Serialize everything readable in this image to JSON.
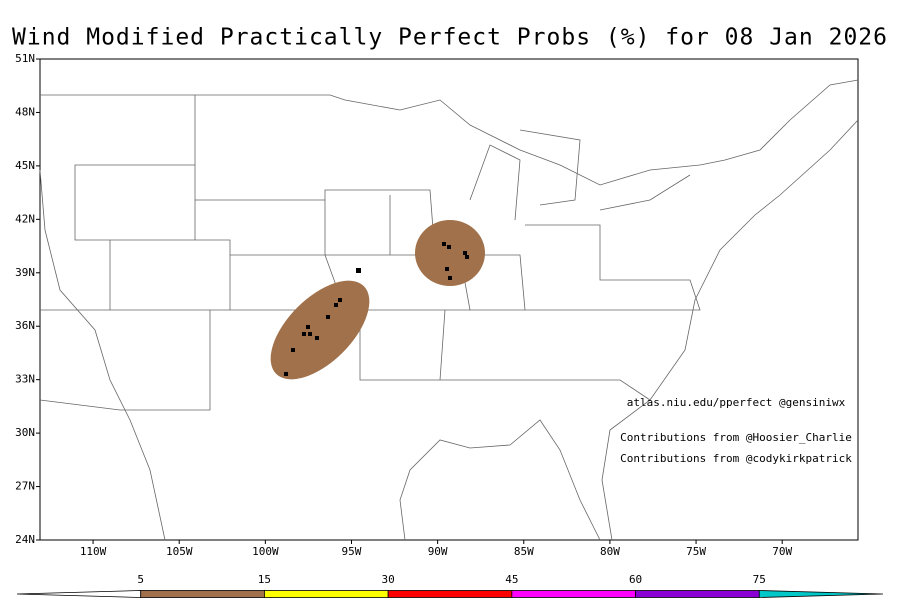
{
  "title": "Wind Modified Practically Perfect Probs (%) for 08 Jan 2026",
  "map": {
    "lat_range": [
      24,
      51
    ],
    "lon_range": [
      -113.08,
      -65.6
    ],
    "lat_ticks": [
      {
        "value": 51,
        "label": "51N"
      },
      {
        "value": 48,
        "label": "48N"
      },
      {
        "value": 45,
        "label": "45N"
      },
      {
        "value": 42,
        "label": "42N"
      },
      {
        "value": 39,
        "label": "39N"
      },
      {
        "value": 36,
        "label": "36N"
      },
      {
        "value": 33,
        "label": "33N"
      },
      {
        "value": 30,
        "label": "30N"
      },
      {
        "value": 27,
        "label": "27N"
      },
      {
        "value": 24,
        "label": "24N"
      }
    ],
    "lon_ticks": [
      {
        "value": -110,
        "label": "110W"
      },
      {
        "value": -105,
        "label": "105W"
      },
      {
        "value": -100,
        "label": "100W"
      },
      {
        "value": -95,
        "label": "95W"
      },
      {
        "value": -90,
        "label": "90W"
      },
      {
        "value": -85,
        "label": "85W"
      },
      {
        "value": -80,
        "label": "80W"
      },
      {
        "value": -75,
        "label": "75W"
      },
      {
        "value": -70,
        "label": "70W"
      }
    ]
  },
  "credits": [
    "atlas.niu.edu/pperfect @gensiniwx",
    "Contributions from @Hoosier_Charlie",
    "Contributions from @codykirkpatrick"
  ],
  "colorbar": {
    "levels": [
      5,
      15,
      30,
      45,
      60,
      75
    ],
    "below_color": "#ffffff",
    "colors": [
      "#a0714a",
      "#ffff00",
      "#ff0000",
      "#ff00ff",
      "#8a00d4",
      "#00c8c8"
    ]
  }
}
